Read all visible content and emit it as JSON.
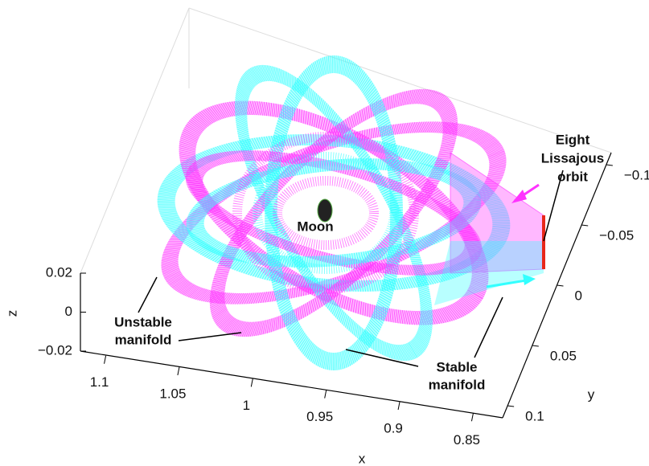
{
  "chart_data": {
    "type": "manifold3d",
    "xlabel": "x",
    "ylabel": "y",
    "zlabel": "z",
    "xlim": [
      1.12,
      0.83
    ],
    "ylim": [
      0.11,
      -0.11
    ],
    "zlim": [
      -0.02,
      0.02
    ],
    "xticks": [
      1.1,
      1.05,
      1,
      0.95,
      0.9,
      0.85
    ],
    "yticks": [
      {
        "value": -0.1,
        "label": "−0.1"
      },
      {
        "value": -0.05,
        "label": "−0.05"
      },
      0,
      0.05,
      0.1
    ],
    "zticks": [
      {
        "value": -0.02,
        "label": "−0.02"
      },
      0,
      0.02
    ],
    "series": [
      {
        "name": "Unstable manifold",
        "color": "#ff33ff"
      },
      {
        "name": "Stable manifold",
        "color": "#33ffff"
      },
      {
        "name": "Eight Lissajous orbit",
        "color": "#e8271a"
      }
    ],
    "annotations": {
      "orbit": [
        "Eight",
        "Lissajous",
        "orbit"
      ],
      "moon": "Moon",
      "unstable": [
        "Unstable",
        "manifold"
      ],
      "stable": [
        "Stable",
        "manifold"
      ]
    }
  }
}
